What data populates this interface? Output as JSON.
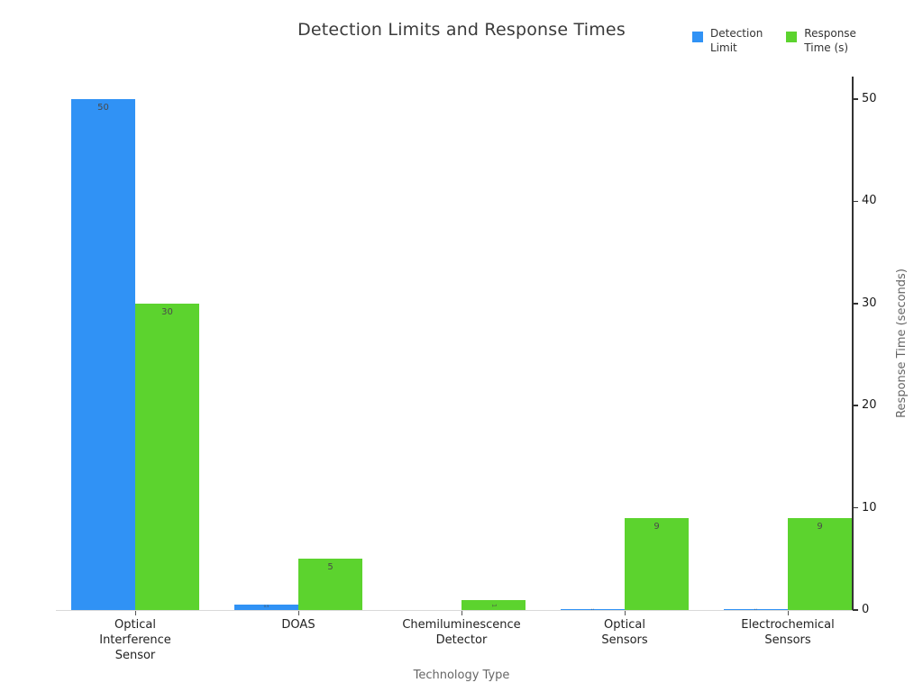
{
  "title": "Detection Limits and Response Times",
  "legend": [
    {
      "name": "detection-limit",
      "label": "Detection\nLimit",
      "color": "#3092f5"
    },
    {
      "name": "response-time",
      "label": "Response\nTime (s)",
      "color": "#5cd32e"
    }
  ],
  "chart_data": {
    "type": "bar",
    "title": "Detection Limits and Response Times",
    "xlabel": "Technology Type",
    "ylabel_right": "Response Time (seconds)",
    "categories": [
      "Optical Interference Sensor",
      "DOAS",
      "Chemiluminescence Detector",
      "Optical Sensors",
      "Electrochemical Sensors"
    ],
    "category_lines": [
      [
        "Optical",
        "Interference",
        "Sensor"
      ],
      [
        "DOAS"
      ],
      [
        "Chemiluminescence",
        "Detector"
      ],
      [
        "Optical",
        "Sensors"
      ],
      [
        "Electrochemical",
        "Sensors"
      ]
    ],
    "series": [
      {
        "name": "Detection Limit",
        "color": "#3092f5",
        "values": [
          50,
          0.5,
          0,
          0.1,
          0.1
        ],
        "labels": [
          "50",
          "0.5",
          "",
          "0.1",
          "0.1"
        ]
      },
      {
        "name": "Response Time (s)",
        "color": "#5cd32e",
        "values": [
          30,
          5,
          1,
          9,
          9
        ],
        "labels": [
          "30",
          "5",
          "1",
          "9",
          "9"
        ]
      }
    ],
    "yticks": [
      0,
      10,
      20,
      30,
      40,
      50
    ],
    "ylim": [
      0,
      52
    ],
    "legend_position": "top-right",
    "grid": false
  },
  "colors": {
    "title_text": "#3b3b3b",
    "axis_title_text": "#666666",
    "tick_text": "#1a1a1a",
    "right_spine": "#333333",
    "baseline": "#d9d9d9",
    "bar_label": "#4a4a4a"
  }
}
